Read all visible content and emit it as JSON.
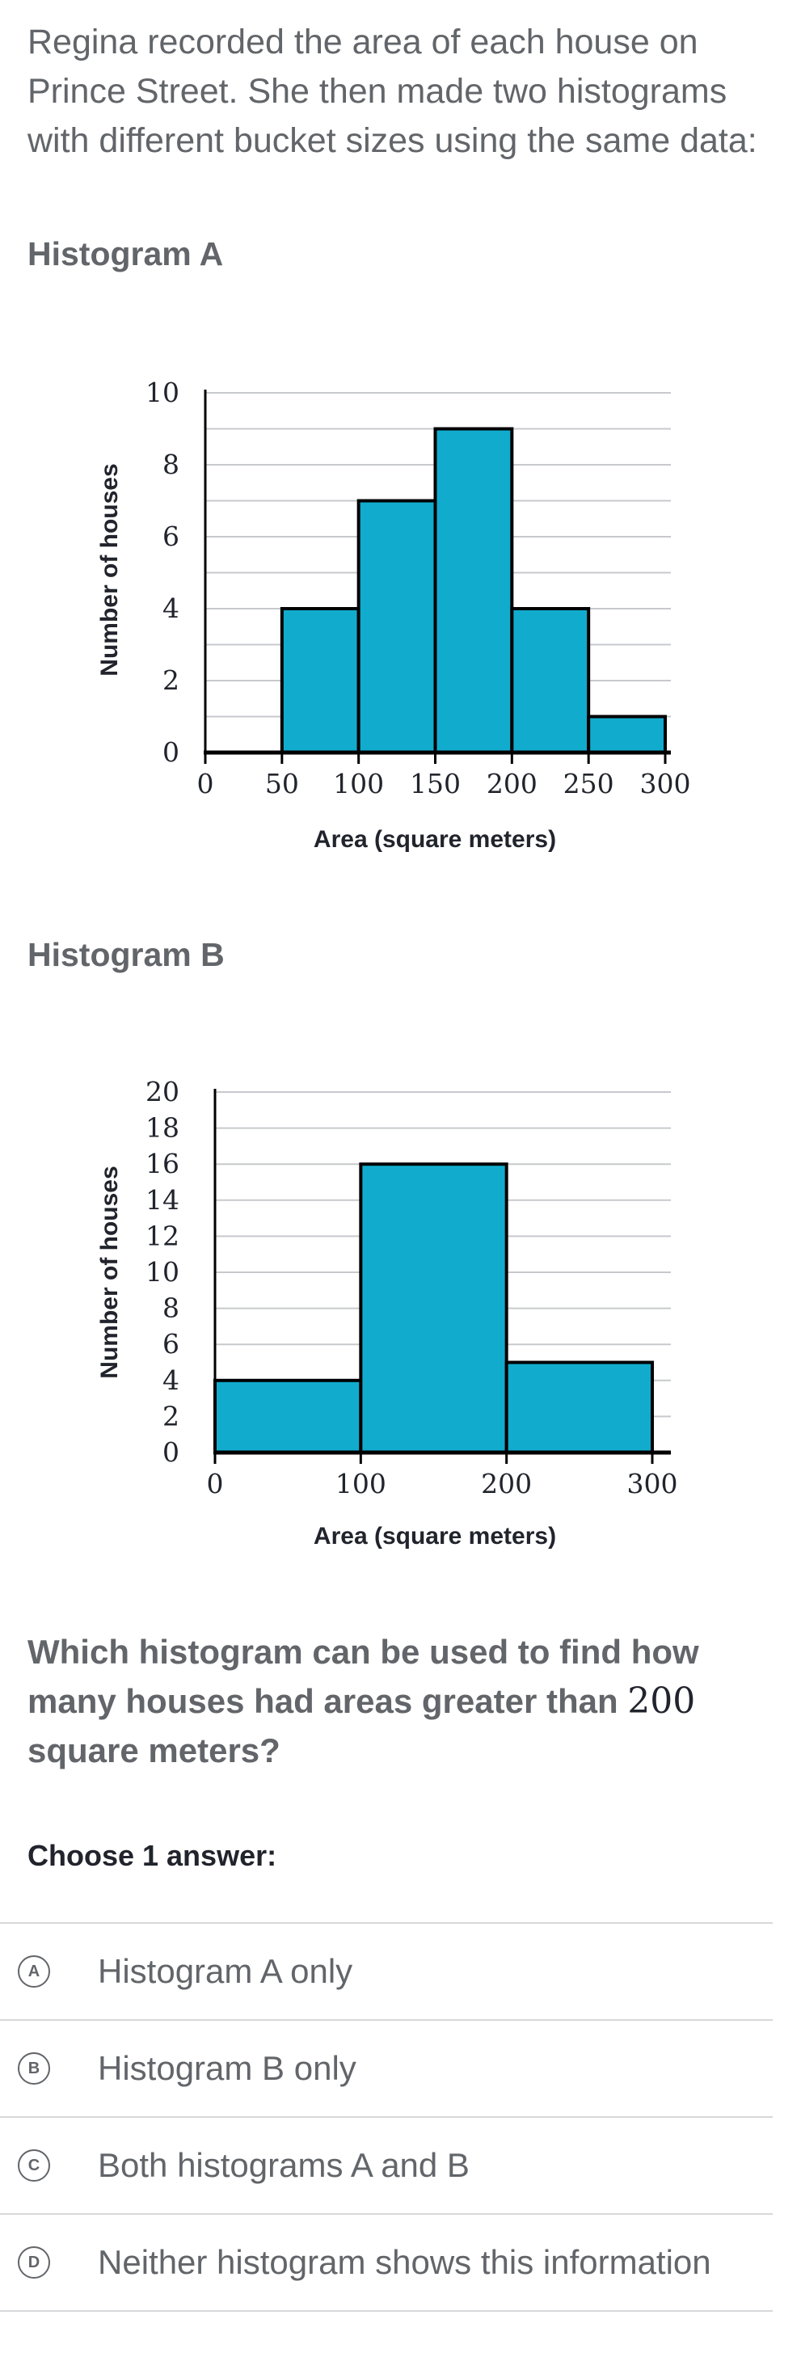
{
  "intro": "Regina recorded the area of each house on Prince Street. She then made two histograms with different bucket sizes using the same data:",
  "histA_heading": "Histogram A",
  "histB_heading": "Histogram B",
  "colors": {
    "bar": "#11accd",
    "grid": "#c7c9cc",
    "axis": "#000000"
  },
  "chart_data": [
    {
      "type": "bar",
      "title": "Histogram A",
      "xlabel": "Area (square meters)",
      "ylabel": "Number of houses",
      "bins": [
        [
          0,
          50
        ],
        [
          50,
          100
        ],
        [
          100,
          150
        ],
        [
          150,
          200
        ],
        [
          200,
          250
        ],
        [
          250,
          300
        ]
      ],
      "values": [
        0,
        4,
        7,
        9,
        4,
        1
      ],
      "xticks": [
        0,
        50,
        100,
        150,
        200,
        250,
        300
      ],
      "yticks": [
        0,
        2,
        4,
        6,
        8,
        10
      ],
      "ylim": [
        0,
        10
      ],
      "grid": true
    },
    {
      "type": "bar",
      "title": "Histogram B",
      "xlabel": "Area (square meters)",
      "ylabel": "Number of houses",
      "bins": [
        [
          0,
          100
        ],
        [
          100,
          200
        ],
        [
          200,
          300
        ]
      ],
      "values": [
        4,
        16,
        5
      ],
      "xticks": [
        0,
        100,
        200,
        300
      ],
      "yticks": [
        0,
        2,
        4,
        6,
        8,
        10,
        12,
        14,
        16,
        18,
        20
      ],
      "ylim": [
        0,
        20
      ],
      "grid": true
    }
  ],
  "question": {
    "before": "Which histogram can be used to find how many houses had areas greater than ",
    "number": "200",
    "after": " square meters?"
  },
  "choose_label": "Choose 1 answer:",
  "choices": [
    {
      "letter": "A",
      "text": "Histogram A only"
    },
    {
      "letter": "B",
      "text": "Histogram B only"
    },
    {
      "letter": "C",
      "text": "Both histograms A and B"
    },
    {
      "letter": "D",
      "text": "Neither histogram shows this information"
    }
  ]
}
